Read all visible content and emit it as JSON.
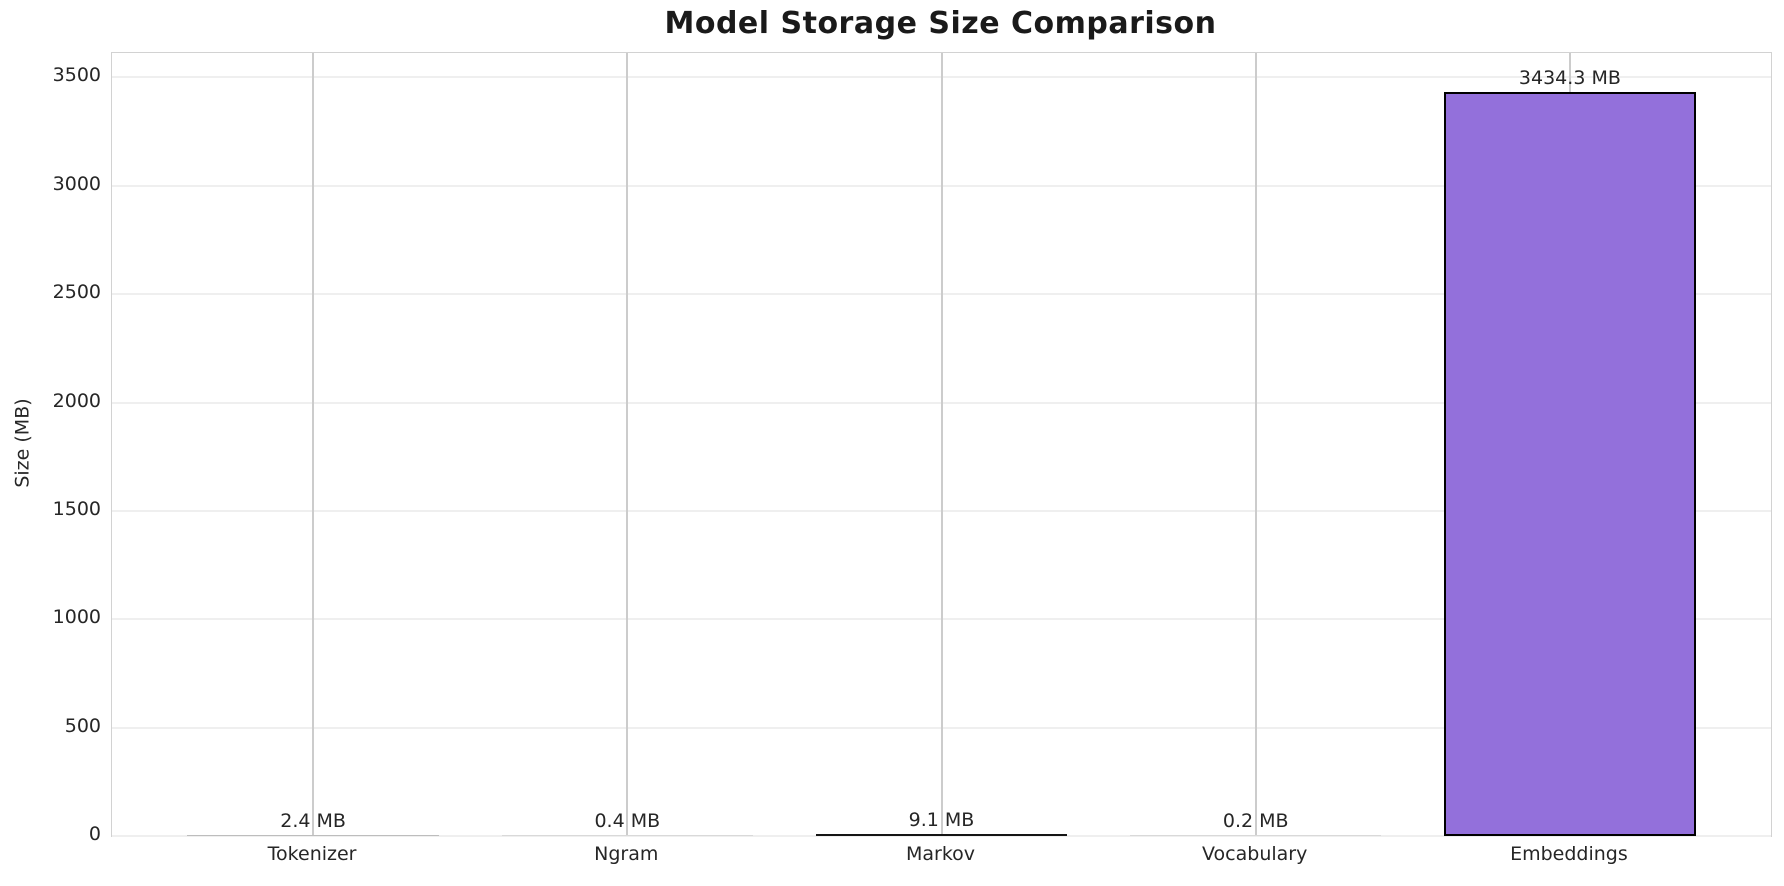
{
  "chart_data": {
    "type": "bar",
    "title": "Model Storage Size Comparison",
    "ylabel": "Size (MB)",
    "xlabel": "",
    "categories": [
      "Tokenizer",
      "Ngram",
      "Markov",
      "Vocabulary",
      "Embeddings"
    ],
    "values": [
      2.4,
      0.4,
      9.1,
      0.2,
      3434.3
    ],
    "value_labels": [
      "2.4 MB",
      "0.4 MB",
      "9.1 MB",
      "0.2 MB",
      "3434.3 MB"
    ],
    "unit": "MB",
    "yticks": [
      0,
      500,
      1000,
      1500,
      2000,
      2500,
      3000,
      3500
    ],
    "ylim": [
      0,
      3613
    ],
    "grid": true,
    "legend_position": "none",
    "colors": {
      "bar_fill": "#9370db",
      "bar_edge": "#000000",
      "tiny_bar_dark": "#151515",
      "tiny_bar_mid": "#bdbdbd",
      "tiny_bar_light": "#d9d9d9",
      "grid_vertical": "#cccccc",
      "grid_horizontal": "#efefef",
      "spine": "#d2d2d2",
      "text": "#262626",
      "title": "#1a1a1a",
      "background": "#ffffff"
    }
  }
}
